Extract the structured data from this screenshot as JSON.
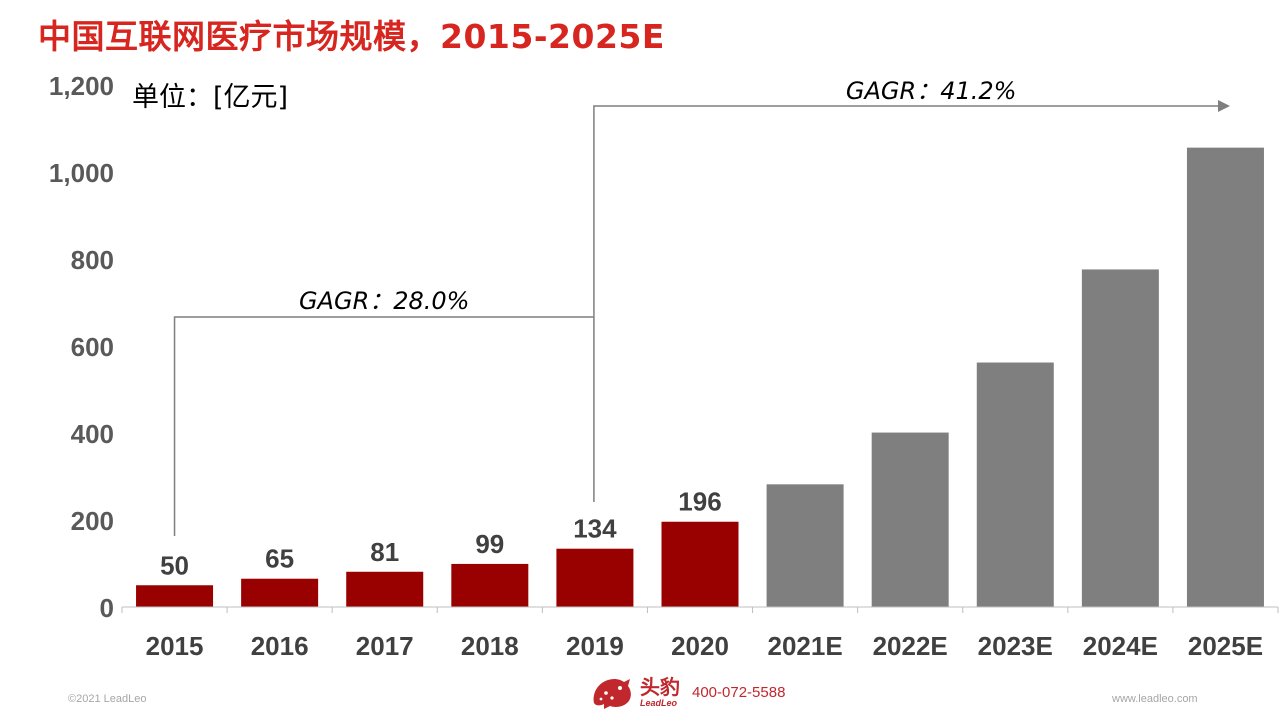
{
  "header": {
    "title": "中国互联网医疗市场规模，2015-2025E"
  },
  "chart_data": {
    "type": "bar",
    "unit_label": "单位：[亿元]",
    "categories": [
      "2015",
      "2016",
      "2017",
      "2018",
      "2019",
      "2020",
      "2021E",
      "2022E",
      "2023E",
      "2024E",
      "2025E"
    ],
    "values": [
      50,
      65,
      81,
      99,
      134,
      196,
      282,
      401,
      562,
      776,
      1056
    ],
    "data_labels": [
      "50",
      "65",
      "81",
      "99",
      "134",
      "196",
      "",
      "",
      "",
      "",
      ""
    ],
    "bar_colors": [
      "#990000",
      "#990000",
      "#990000",
      "#990000",
      "#990000",
      "#990000",
      "#7f7f7f",
      "#7f7f7f",
      "#7f7f7f",
      "#7f7f7f",
      "#7f7f7f"
    ],
    "ylim": [
      0,
      1200
    ],
    "yticks": [
      0,
      200,
      400,
      600,
      800,
      1000,
      1200
    ],
    "ytick_labels": [
      "0",
      "200",
      "400",
      "600",
      "800",
      "1,000",
      "1,200"
    ],
    "grid": false,
    "annotations": [
      {
        "text": "GAGR：28.0%",
        "from": "2015",
        "to": "2019"
      },
      {
        "text": "GAGR：41.2%",
        "from": "2019",
        "to": "2025E"
      }
    ]
  },
  "footer": {
    "copyright": "©2021 LeadLeo",
    "logo_cn": "头豹",
    "logo_en": "LeadLeo",
    "phone": "400-072-5588",
    "website": "www.leadleo.com"
  },
  "colors": {
    "title": "#d6261f",
    "actual": "#990000",
    "forecast": "#7f7f7f",
    "axis_text": "#595959",
    "brand": "#c0282d"
  }
}
